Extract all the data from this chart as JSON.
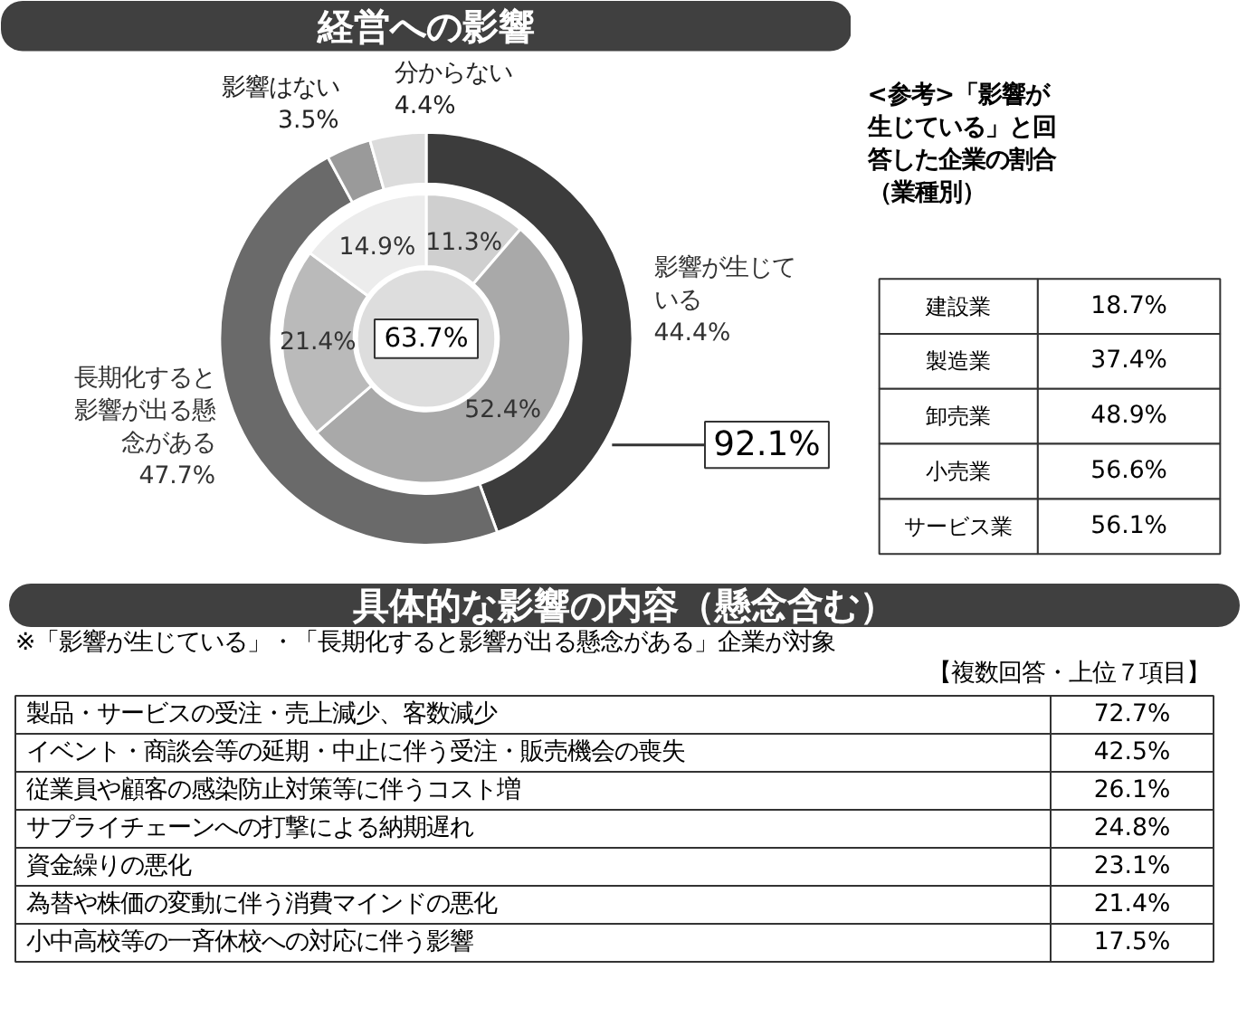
{
  "chart_data": [
    {
      "type": "donut",
      "title": "経営への影響",
      "categories": [
        "影響が生じている",
        "長期化すると影響が出る懸念がある",
        "影響はない",
        "分からない"
      ],
      "series": [
        {
          "values": [
            44.4,
            47.7,
            3.5,
            4.4
          ],
          "colors": [
            "#3c3c3c",
            "#6a6a6a",
            "#9a9a9a",
            "#dcdcdc"
          ],
          "value_labels": [
            "44.4%",
            "47.7%",
            "3.5%",
            "4.4%"
          ]
        },
        {
          "values": [
            11.3,
            52.4,
            21.4,
            14.9
          ],
          "colors": [
            "#cfcfcf",
            "#a9a9a9",
            "#bababa",
            "#ececec"
          ],
          "value_labels": [
            "11.3%",
            "52.4%",
            "21.4%",
            "14.9%"
          ]
        }
      ],
      "annotations": [
        "63.7%",
        "92.1%"
      ]
    },
    {
      "type": "other",
      "title": "<参考>「影響が生じている」と回答した企業の割合（業種別）",
      "categories": [
        "建設業",
        "製造業",
        "卸売業",
        "小売業",
        "サービス業"
      ],
      "value_labels": [
        "18.7%",
        "37.4%",
        "48.9%",
        "56.6%",
        "56.1%"
      ]
    },
    {
      "type": "other",
      "title": "具体的な影響の内容（懸念含む）",
      "subtitle": "※「影響が生じている」・「長期化すると影響が出る懸念がある」企業が対象",
      "annotations": [
        "【複数回答・上位７項目】"
      ],
      "categories": [
        "製品・サービスの受注・売上減少、客数減少",
        "イベント・商談会等の延期・中止に伴う受注・販売機会の喪失",
        "従業員や顧客の感染防止対策等に伴うコスト増",
        "サプライチェーンへの打撃による納期遅れ",
        "資金繰りの悪化",
        "為替や株価の変動に伴う消費マインドの悪化",
        "小中高校等の一斉休校への対応に伴う影響"
      ],
      "value_labels": [
        "72.7%",
        "42.5%",
        "26.1%",
        "24.8%",
        "23.1%",
        "21.4%",
        "17.5%"
      ]
    }
  ]
}
